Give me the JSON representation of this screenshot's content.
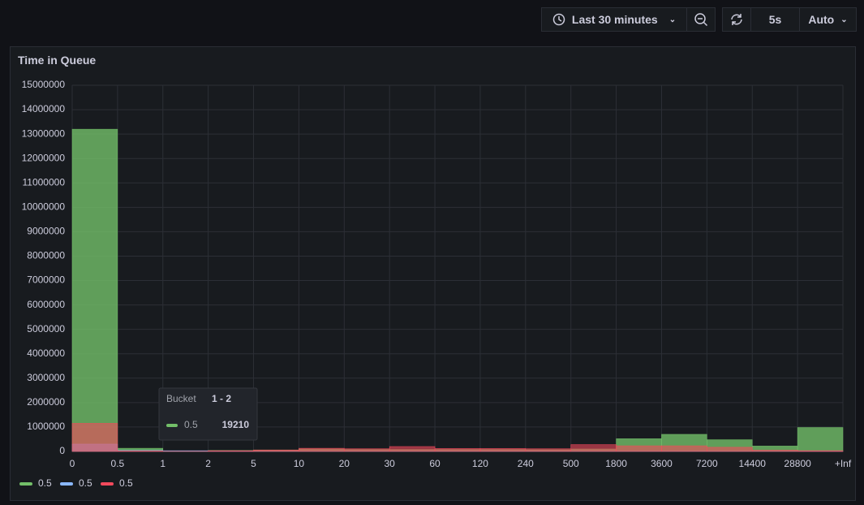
{
  "toolbar": {
    "time_range": "Last 30 minutes",
    "refresh_interval": "5s",
    "refresh_mode": "Auto"
  },
  "panel": {
    "title": "Time in Queue"
  },
  "tooltip": {
    "label": "Bucket",
    "bucket": "1 - 2"
  },
  "chart_data": {
    "type": "histogram",
    "bins": [
      0,
      0.5,
      1,
      2,
      5,
      10,
      20,
      30,
      60,
      120,
      240,
      500,
      1800,
      3600,
      7200,
      14400,
      28800,
      "+Inf"
    ],
    "series": [
      {
        "name": "0.5",
        "color": "#73bf69",
        "values": [
          13200000,
          130000,
          19210,
          40000,
          60000,
          100000,
          80000,
          80000,
          80000,
          80000,
          70000,
          100000,
          520000,
          700000,
          480000,
          220000,
          980000
        ]
      },
      {
        "name": "0.5",
        "color": "#8ab8ff",
        "values": [
          300000,
          40000,
          30000,
          20000,
          10000,
          10000,
          10000,
          10000,
          10000,
          10000,
          10000,
          10000,
          10000,
          10000,
          10000,
          10000,
          10000
        ]
      },
      {
        "name": "0.5",
        "color": "#f2495c",
        "values": [
          1150000,
          20000,
          5000,
          30000,
          60000,
          130000,
          110000,
          200000,
          120000,
          120000,
          110000,
          280000,
          230000,
          230000,
          170000,
          50000,
          30000
        ]
      }
    ],
    "ylim": [
      0,
      15000000
    ],
    "yticks": [
      0,
      1000000,
      2000000,
      3000000,
      4000000,
      5000000,
      6000000,
      7000000,
      8000000,
      9000000,
      10000000,
      11000000,
      12000000,
      13000000,
      14000000,
      15000000
    ],
    "grid": true,
    "legend": "bottom-left"
  }
}
